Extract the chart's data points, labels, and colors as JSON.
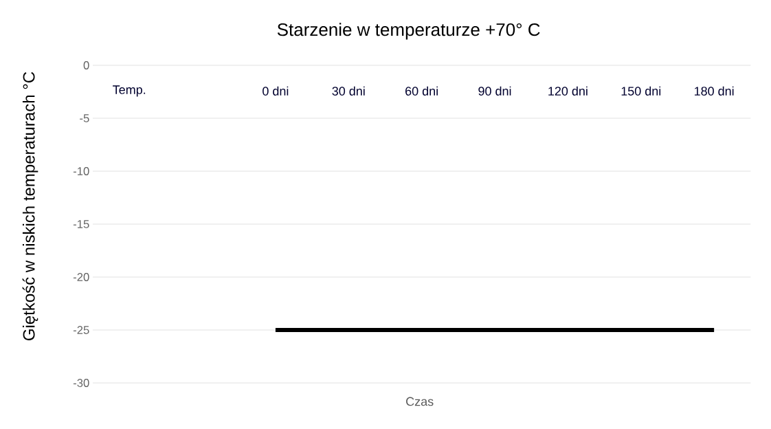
{
  "chart_data": {
    "type": "line",
    "title": "Starzenie w temperaturze +70° C",
    "xlabel": "Czas",
    "ylabel": "Giętkość w niskich temperaturach °C",
    "categories": [
      "Temp.",
      null,
      "0 dni",
      "30 dni",
      "60 dni",
      "90 dni",
      "120 dni",
      "150 dni",
      "180 dni"
    ],
    "series": [
      {
        "color": "#000000",
        "values": [
          null,
          null,
          -25,
          -25,
          -25,
          -25,
          -25,
          -25,
          -25
        ]
      }
    ],
    "ylim": [
      -30,
      0
    ],
    "yticks": [
      0,
      -5,
      -10,
      -15,
      -20,
      -25,
      -30
    ],
    "grid": "y",
    "marker": "none",
    "line_style": "solid"
  }
}
